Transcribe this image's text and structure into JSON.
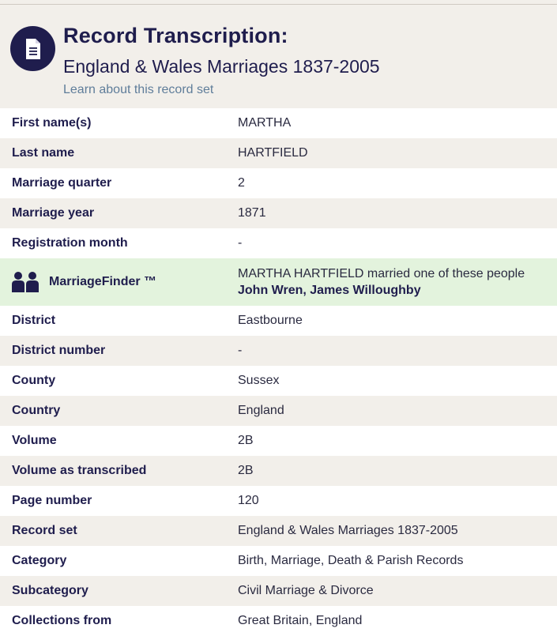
{
  "header": {
    "title": "Record Transcription:",
    "subtitle": "England & Wales Marriages 1837-2005",
    "learn_link": "Learn about this record set",
    "icon": "document-icon"
  },
  "fields_before": [
    {
      "label": "First name(s)",
      "value": "MARTHA"
    },
    {
      "label": "Last name",
      "value": "HARTFIELD"
    },
    {
      "label": "Marriage quarter",
      "value": "2"
    },
    {
      "label": "Marriage year",
      "value": "1871"
    },
    {
      "label": "Registration month",
      "value": "-"
    }
  ],
  "marriage_finder": {
    "label": "MarriageFinder ™",
    "icon": "people-icon",
    "intro": "MARTHA HARTFIELD married one of these people",
    "spouses": "John Wren, James Willoughby"
  },
  "fields_after": [
    {
      "label": "District",
      "value": "Eastbourne"
    },
    {
      "label": "District number",
      "value": "-"
    },
    {
      "label": "County",
      "value": "Sussex"
    },
    {
      "label": "Country",
      "value": "England"
    },
    {
      "label": "Volume",
      "value": "2B"
    },
    {
      "label": "Volume as transcribed",
      "value": "2B"
    },
    {
      "label": "Page number",
      "value": "120"
    },
    {
      "label": "Record set",
      "value": "England & Wales Marriages 1837-2005"
    },
    {
      "label": "Category",
      "value": "Birth, Marriage, Death & Parish Records"
    },
    {
      "label": "Subcategory",
      "value": "Civil Marriage & Divorce"
    },
    {
      "label": "Collections from",
      "value": "Great Britain, England"
    }
  ]
}
